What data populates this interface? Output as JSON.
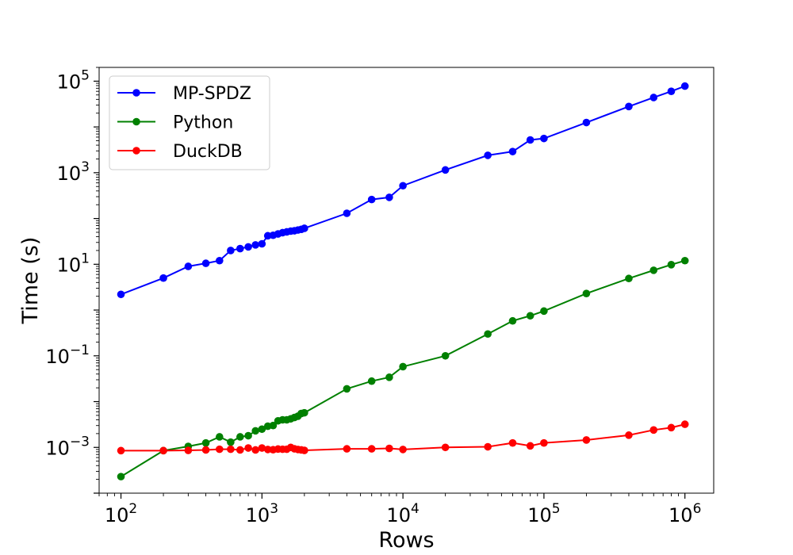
{
  "chart_data": {
    "type": "line",
    "xscale": "log",
    "yscale": "log",
    "xlabel": "Rows",
    "ylabel": "Time (s)",
    "xlim": [
      70,
      1600000
    ],
    "ylim": [
      0.0001,
      200000
    ],
    "grid": false,
    "legend_position": "upper-left",
    "x_ticks": [
      {
        "value": 100,
        "base": "10",
        "exp": "2"
      },
      {
        "value": 1000,
        "base": "10",
        "exp": "3"
      },
      {
        "value": 10000,
        "base": "10",
        "exp": "4"
      },
      {
        "value": 100000,
        "base": "10",
        "exp": "5"
      },
      {
        "value": 1000000,
        "base": "10",
        "exp": "6"
      }
    ],
    "y_ticks": [
      {
        "value": 0.001,
        "base": "10",
        "exp": "−3"
      },
      {
        "value": 0.1,
        "base": "10",
        "exp": "−1"
      },
      {
        "value": 10,
        "base": "10",
        "exp": "1"
      },
      {
        "value": 1000,
        "base": "10",
        "exp": "3"
      },
      {
        "value": 100000,
        "base": "10",
        "exp": "5"
      }
    ],
    "series": [
      {
        "name": "MP-SPDZ",
        "color": "#0000ff",
        "points": [
          [
            100,
            2.2
          ],
          [
            200,
            5.0
          ],
          [
            300,
            9.0
          ],
          [
            400,
            10.5
          ],
          [
            500,
            12.0
          ],
          [
            600,
            20.0
          ],
          [
            700,
            22.0
          ],
          [
            800,
            24.0
          ],
          [
            900,
            26.5
          ],
          [
            1000,
            28.0
          ],
          [
            1100,
            42.0
          ],
          [
            1200,
            43.0
          ],
          [
            1300,
            46.0
          ],
          [
            1400,
            49.0
          ],
          [
            1500,
            51.0
          ],
          [
            1600,
            53.0
          ],
          [
            1700,
            54.0
          ],
          [
            1800,
            56.0
          ],
          [
            1900,
            58.0
          ],
          [
            2000,
            61.0
          ],
          [
            4000,
            130.0
          ],
          [
            6000,
            260.0
          ],
          [
            8000,
            290.0
          ],
          [
            10000,
            520.0
          ],
          [
            20000,
            1150.0
          ],
          [
            40000,
            2400.0
          ],
          [
            60000,
            2900.0
          ],
          [
            80000,
            5200.0
          ],
          [
            100000,
            5600.0
          ],
          [
            200000,
            12500.0
          ],
          [
            400000,
            28000.0
          ],
          [
            600000,
            44000.0
          ],
          [
            800000,
            60000.0
          ],
          [
            1000000,
            78000.0
          ]
        ]
      },
      {
        "name": "Python",
        "color": "#008000",
        "points": [
          [
            100,
            0.00023
          ],
          [
            200,
            0.00085
          ],
          [
            300,
            0.00105
          ],
          [
            400,
            0.00125
          ],
          [
            500,
            0.0017
          ],
          [
            600,
            0.0013
          ],
          [
            700,
            0.0017
          ],
          [
            800,
            0.0018
          ],
          [
            900,
            0.0023
          ],
          [
            1000,
            0.0025
          ],
          [
            1100,
            0.0029
          ],
          [
            1200,
            0.003
          ],
          [
            1300,
            0.0038
          ],
          [
            1400,
            0.004
          ],
          [
            1500,
            0.004
          ],
          [
            1600,
            0.0042
          ],
          [
            1700,
            0.0045
          ],
          [
            1800,
            0.0048
          ],
          [
            1900,
            0.0055
          ],
          [
            2000,
            0.0057
          ],
          [
            4000,
            0.019
          ],
          [
            6000,
            0.028
          ],
          [
            8000,
            0.034
          ],
          [
            10000,
            0.058
          ],
          [
            20000,
            0.1
          ],
          [
            40000,
            0.3
          ],
          [
            60000,
            0.58
          ],
          [
            80000,
            0.75
          ],
          [
            100000,
            0.95
          ],
          [
            200000,
            2.3
          ],
          [
            400000,
            4.9
          ],
          [
            600000,
            7.4
          ],
          [
            800000,
            9.8
          ],
          [
            1000000,
            12.0
          ]
        ]
      },
      {
        "name": "DuckDB",
        "color": "#ff0000",
        "points": [
          [
            100,
            0.00085
          ],
          [
            200,
            0.00085
          ],
          [
            300,
            0.00086
          ],
          [
            400,
            0.00088
          ],
          [
            500,
            0.00091
          ],
          [
            600,
            0.00091
          ],
          [
            700,
            0.00088
          ],
          [
            800,
            0.00097
          ],
          [
            900,
            0.00088
          ],
          [
            1000,
            0.00097
          ],
          [
            1100,
            0.0009
          ],
          [
            1200,
            0.00089
          ],
          [
            1300,
            0.00092
          ],
          [
            1400,
            0.00091
          ],
          [
            1500,
            0.00091
          ],
          [
            1600,
            0.001
          ],
          [
            1700,
            0.00093
          ],
          [
            1800,
            0.0009
          ],
          [
            1900,
            0.00088
          ],
          [
            2000,
            0.00086
          ],
          [
            4000,
            0.00093
          ],
          [
            6000,
            0.00093
          ],
          [
            8000,
            0.00095
          ],
          [
            10000,
            0.0009
          ],
          [
            20000,
            0.001
          ],
          [
            40000,
            0.00103
          ],
          [
            60000,
            0.00125
          ],
          [
            80000,
            0.00108
          ],
          [
            100000,
            0.00125
          ],
          [
            200000,
            0.00145
          ],
          [
            400000,
            0.00185
          ],
          [
            600000,
            0.0024
          ],
          [
            800000,
            0.0027
          ],
          [
            1000000,
            0.0032
          ]
        ]
      }
    ]
  }
}
